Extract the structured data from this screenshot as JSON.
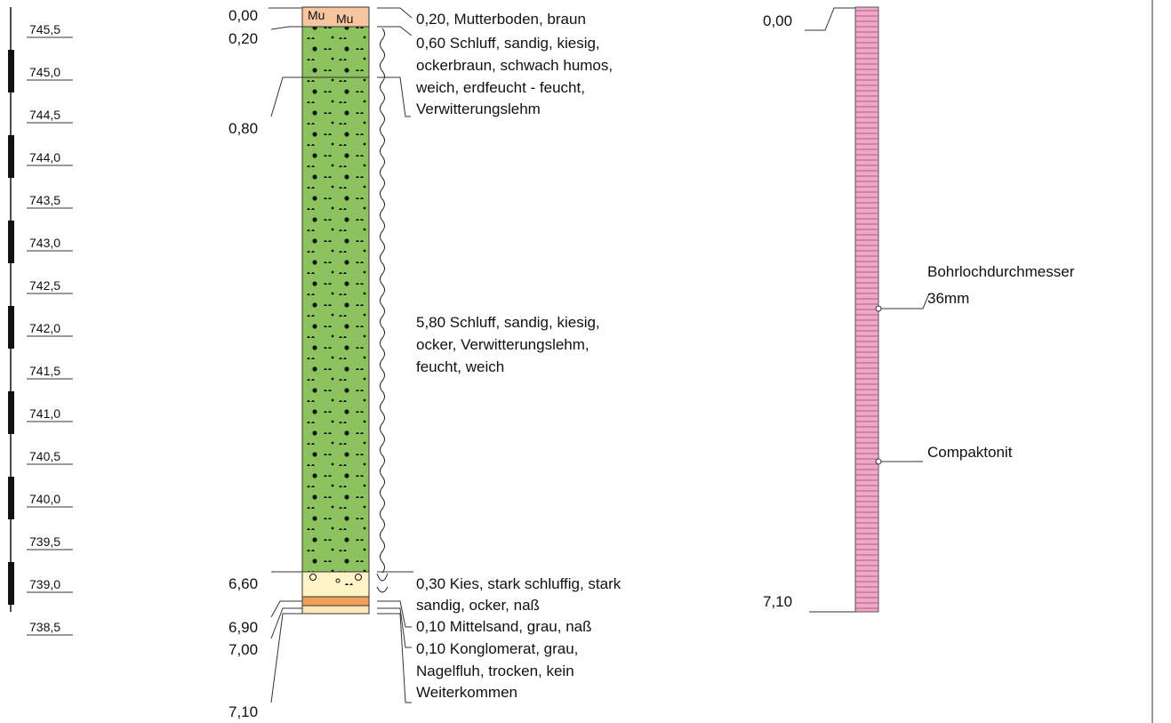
{
  "elevation_scale": {
    "labels": [
      "745,5",
      "745,0",
      "744,5",
      "744,0",
      "743,5",
      "743,0",
      "742,5",
      "742,0",
      "741,5",
      "741,0",
      "740,5",
      "740,0",
      "739,5",
      "739,0",
      "738,5"
    ]
  },
  "profile": {
    "depth_labels": [
      "0,00",
      "0,20",
      "0,80",
      "6,60",
      "6,90",
      "7,00",
      "7,10"
    ],
    "layers": [
      {
        "lines": [
          "0,20, Mutterboden, braun"
        ]
      },
      {
        "lines": [
          "0,60 Schluff, sandig, kiesig,",
          "ockerbraun, schwach humos,",
          "weich, erdfeucht - feucht,",
          "Verwitterungslehm"
        ]
      },
      {
        "lines": [
          "5,80 Schluff, sandig, kiesig,",
          "ocker, Verwitterungslehm,",
          "feucht, weich"
        ]
      },
      {
        "lines": [
          "0,30 Kies, stark schluffig, stark",
          "sandig, ocker, naß"
        ]
      },
      {
        "lines": [
          "0,10 Mittelsand, grau, naß"
        ]
      },
      {
        "lines": [
          "0,10 Konglomerat, grau,",
          "Nagelfluh, trocken, kein",
          "Weiterkommen"
        ]
      }
    ],
    "topsoil_symbol": "Mu",
    "colors": {
      "topsoil": "#f5c6a0",
      "silt": "#8cc25f",
      "gravel": "#fff3c8",
      "sand": "#f0a05a",
      "conglomerate": "#fde8b8"
    }
  },
  "installation": {
    "depth_top": "0,00",
    "depth_bottom": "7,10",
    "label_diameter_1": "Bohrlochdurchmesser",
    "label_diameter_2": "36mm",
    "label_fill": "Compaktonit",
    "color": "#f2a6c8"
  }
}
